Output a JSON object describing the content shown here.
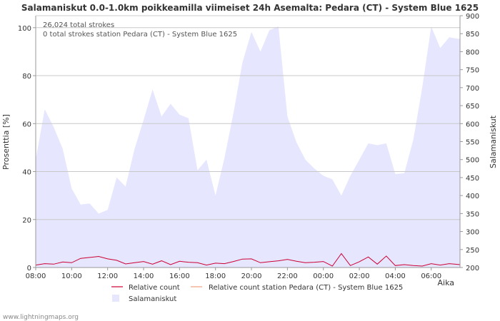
{
  "chart_data": {
    "type": "area",
    "title": "Salamaniskut 0.0-1.0km poikkeamilla viimeiset 24h Asemalta: Pedara (CT) - System Blue 1625",
    "annotations": [
      "26,024 total strokes",
      "0 total strokes station Pedara (CT) - System Blue 1625"
    ],
    "xlabel": "Aika",
    "ylabel_left": "Prosenttia   [%]",
    "ylabel_right": "Salamaniskut",
    "ylim_left": [
      0,
      105
    ],
    "ylim_right": [
      200,
      900
    ],
    "x_range_hours": [
      0,
      23.6
    ],
    "x_ticks": [
      {
        "h": 0,
        "label": "08:00"
      },
      {
        "h": 2,
        "label": "10:00"
      },
      {
        "h": 4,
        "label": "12:00"
      },
      {
        "h": 6,
        "label": "14:00"
      },
      {
        "h": 8,
        "label": "16:00"
      },
      {
        "h": 10,
        "label": "18:00"
      },
      {
        "h": 12,
        "label": "20:00"
      },
      {
        "h": 14,
        "label": "22:00"
      },
      {
        "h": 16,
        "label": "00:00"
      },
      {
        "h": 18,
        "label": "02:00"
      },
      {
        "h": 20,
        "label": "04:00"
      },
      {
        "h": 22,
        "label": "06:00"
      }
    ],
    "y_ticks_left": [
      {
        "v": 0,
        "label": "0"
      },
      {
        "v": 20,
        "label": "20"
      },
      {
        "v": 40,
        "label": "40"
      },
      {
        "v": 60,
        "label": "60"
      },
      {
        "v": 80,
        "label": "80"
      },
      {
        "v": 100,
        "label": "100"
      }
    ],
    "y_ticks_right": [
      {
        "v": 200,
        "label": "200"
      },
      {
        "v": 250,
        "label": "250"
      },
      {
        "v": 300,
        "label": "300"
      },
      {
        "v": 350,
        "label": "350"
      },
      {
        "v": 400,
        "label": "400"
      },
      {
        "v": 450,
        "label": "450"
      },
      {
        "v": 500,
        "label": "500"
      },
      {
        "v": 550,
        "label": "550"
      },
      {
        "v": 600,
        "label": "600"
      },
      {
        "v": 650,
        "label": "650"
      },
      {
        "v": 700,
        "label": "700"
      },
      {
        "v": 750,
        "label": "750"
      },
      {
        "v": 800,
        "label": "800"
      },
      {
        "v": 850,
        "label": "850"
      },
      {
        "v": 900,
        "label": "900"
      }
    ],
    "series": [
      {
        "name": "Salamaniskut",
        "axis": "right",
        "color": "#e6e6ff",
        "points": [
          [
            0,
            500
          ],
          [
            0.5,
            640
          ],
          [
            1,
            590
          ],
          [
            1.5,
            530
          ],
          [
            2,
            420
          ],
          [
            2.5,
            375
          ],
          [
            3,
            378
          ],
          [
            3.5,
            350
          ],
          [
            4,
            360
          ],
          [
            4.5,
            450
          ],
          [
            5,
            425
          ],
          [
            5.5,
            530
          ],
          [
            6,
            610
          ],
          [
            6.5,
            695
          ],
          [
            7,
            620
          ],
          [
            7.5,
            655
          ],
          [
            8,
            625
          ],
          [
            8.5,
            615
          ],
          [
            9,
            470
          ],
          [
            9.5,
            500
          ],
          [
            10,
            400
          ],
          [
            10.5,
            505
          ],
          [
            11,
            630
          ],
          [
            11.5,
            770
          ],
          [
            12,
            855
          ],
          [
            12.5,
            800
          ],
          [
            13,
            860
          ],
          [
            13.5,
            870
          ],
          [
            14,
            620
          ],
          [
            14.5,
            548
          ],
          [
            15,
            500
          ],
          [
            15.5,
            475
          ],
          [
            16,
            455
          ],
          [
            16.5,
            445
          ],
          [
            17,
            400
          ],
          [
            17.5,
            455
          ],
          [
            18,
            500
          ],
          [
            18.5,
            545
          ],
          [
            19,
            540
          ],
          [
            19.5,
            545
          ],
          [
            20,
            460
          ],
          [
            20.5,
            462
          ],
          [
            21,
            555
          ],
          [
            21.5,
            700
          ],
          [
            22,
            870
          ],
          [
            22.5,
            810
          ],
          [
            23,
            840
          ],
          [
            23.6,
            835
          ]
        ]
      },
      {
        "name": "Relative count",
        "axis": "left",
        "color": "#cc0033",
        "points": [
          [
            0,
            1
          ],
          [
            0.5,
            1.6
          ],
          [
            1,
            1.4
          ],
          [
            1.5,
            2.3
          ],
          [
            2,
            2
          ],
          [
            2.5,
            3.8
          ],
          [
            3,
            4.2
          ],
          [
            3.5,
            4.6
          ],
          [
            4,
            3.6
          ],
          [
            4.5,
            3
          ],
          [
            5,
            1.5
          ],
          [
            5.5,
            2
          ],
          [
            6,
            2.5
          ],
          [
            6.5,
            1.4
          ],
          [
            7,
            2.8
          ],
          [
            7.5,
            1.2
          ],
          [
            8,
            2.6
          ],
          [
            8.5,
            2.2
          ],
          [
            9,
            2
          ],
          [
            9.5,
            1
          ],
          [
            10,
            1.8
          ],
          [
            10.5,
            1.6
          ],
          [
            11,
            2.5
          ],
          [
            11.5,
            3.5
          ],
          [
            12,
            3.6
          ],
          [
            12.5,
            2
          ],
          [
            13,
            2.4
          ],
          [
            13.5,
            2.8
          ],
          [
            14,
            3.4
          ],
          [
            14.5,
            2.6
          ],
          [
            15,
            2
          ],
          [
            15.5,
            2.2
          ],
          [
            16,
            2.5
          ],
          [
            16.5,
            0.6
          ],
          [
            17,
            5.8
          ],
          [
            17.5,
            0.8
          ],
          [
            18,
            2.4
          ],
          [
            18.5,
            4.4
          ],
          [
            19,
            1.4
          ],
          [
            19.5,
            4.8
          ],
          [
            20,
            0.8
          ],
          [
            20.5,
            1.2
          ],
          [
            21,
            0.8
          ],
          [
            21.5,
            0.6
          ],
          [
            22,
            1.6
          ],
          [
            22.5,
            1
          ],
          [
            23,
            1.6
          ],
          [
            23.6,
            1.2
          ]
        ]
      },
      {
        "name": "Relative count station Pedara (CT) - System Blue 1625",
        "axis": "left",
        "color": "#f0a080",
        "points": []
      }
    ],
    "legend": [
      {
        "label": "Relative count",
        "kind": "line",
        "color": "#cc0033"
      },
      {
        "label": "Relative count station Pedara (CT) - System Blue 1625",
        "kind": "line",
        "color": "#f0a080"
      },
      {
        "label": "Salamaniskut",
        "kind": "box",
        "color": "#e6e6ff"
      }
    ],
    "grid": true,
    "legend_position": "bottom"
  },
  "footer": {
    "credit": "www.lightningmaps.org"
  }
}
